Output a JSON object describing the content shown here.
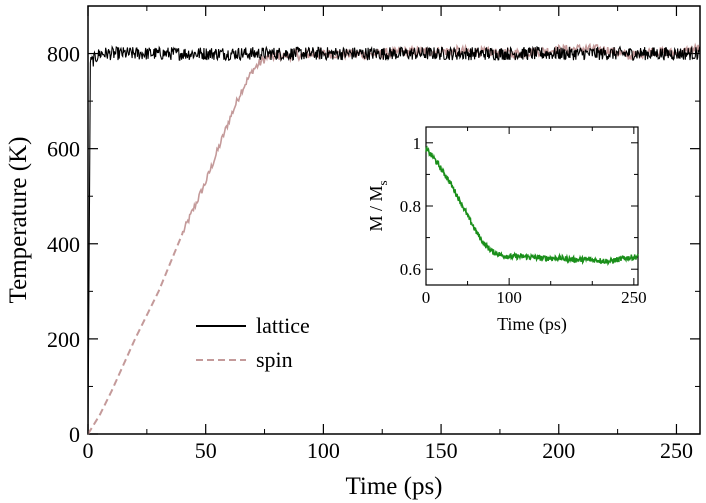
{
  "chart_data": [
    {
      "type": "line",
      "xlabel": "Time (ps)",
      "ylabel": "Temperature (K)",
      "xlim": [
        0,
        260
      ],
      "ylim": [
        0,
        900
      ],
      "xticks": [
        0,
        50,
        100,
        150,
        200,
        250
      ],
      "xtick_labels": [
        "0",
        "50",
        "100",
        "150",
        "200",
        "250"
      ],
      "yticks": [
        0,
        200,
        400,
        600,
        800
      ],
      "ytick_labels": [
        "0",
        "200",
        "400",
        "600",
        "800"
      ],
      "legend_position": "lower-left",
      "series": [
        {
          "name": "lattice",
          "color": "#000000",
          "style": "solid",
          "x": [
            0,
            1,
            5,
            20,
            50,
            100,
            150,
            200,
            250,
            260
          ],
          "y": [
            0,
            780,
            800,
            800,
            800,
            800,
            800,
            800,
            800,
            800
          ]
        },
        {
          "name": "spin",
          "color": "#c49a9a",
          "style": "dashed-then-solid",
          "x": [
            0,
            5,
            10,
            20,
            30,
            40,
            50,
            60,
            65,
            70,
            75,
            80,
            90,
            100,
            120,
            140,
            160,
            180,
            200,
            210,
            220,
            230,
            240,
            250,
            260
          ],
          "y": [
            0,
            40,
            90,
            200,
            300,
            420,
            530,
            660,
            720,
            765,
            790,
            795,
            797,
            800,
            798,
            805,
            805,
            800,
            808,
            810,
            808,
            795,
            805,
            800,
            812
          ]
        }
      ]
    },
    {
      "type": "line",
      "xlabel": "Time (ps)",
      "ylabel": "M / M",
      "ylabel_subscript": "s",
      "xlim": [
        0,
        255
      ],
      "ylim": [
        0.55,
        1.05
      ],
      "xticks": [
        0,
        100,
        250
      ],
      "xtick_labels": [
        "0",
        "100",
        "250"
      ],
      "yticks": [
        0.6,
        0.8,
        1.0
      ],
      "ytick_labels": [
        "0.6",
        "0.8",
        "1"
      ],
      "series": [
        {
          "color": "#1a8f1a",
          "x": [
            0,
            10,
            20,
            30,
            40,
            50,
            60,
            70,
            80,
            90,
            100,
            120,
            140,
            160,
            180,
            200,
            220,
            240,
            255
          ],
          "y": [
            0.98,
            0.95,
            0.91,
            0.87,
            0.82,
            0.77,
            0.72,
            0.68,
            0.655,
            0.645,
            0.64,
            0.64,
            0.635,
            0.635,
            0.63,
            0.63,
            0.625,
            0.635,
            0.64
          ]
        }
      ]
    }
  ]
}
